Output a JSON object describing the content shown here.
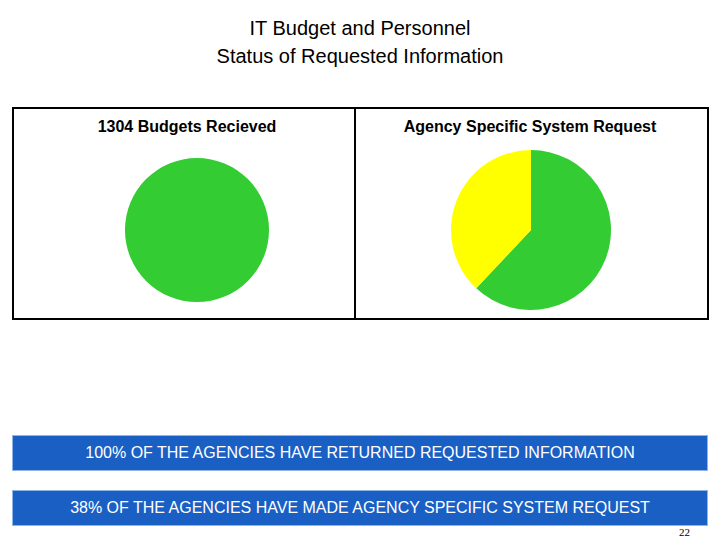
{
  "slide": {
    "title": [
      "IT Budget and Personnel",
      "Status of Requested Information"
    ],
    "notes": [
      "100% OF THE AGENCIES HAVE RETURNED REQUESTED INFORMATION",
      "38% OF THE AGENCIES HAVE MADE AGENCY SPECIFIC SYSTEM REQUEST"
    ],
    "page": "22"
  },
  "chart_data": [
    {
      "type": "pie",
      "title": "1304 Budgets Recieved",
      "values": [
        100
      ],
      "colors": [
        "#33cc33"
      ],
      "tick_labels": false
    },
    {
      "type": "pie",
      "title": "Agency Specific System Request",
      "values": [
        62,
        38
      ],
      "colors": [
        "#33cc33",
        "#ffff00"
      ],
      "tick_labels": false
    }
  ]
}
